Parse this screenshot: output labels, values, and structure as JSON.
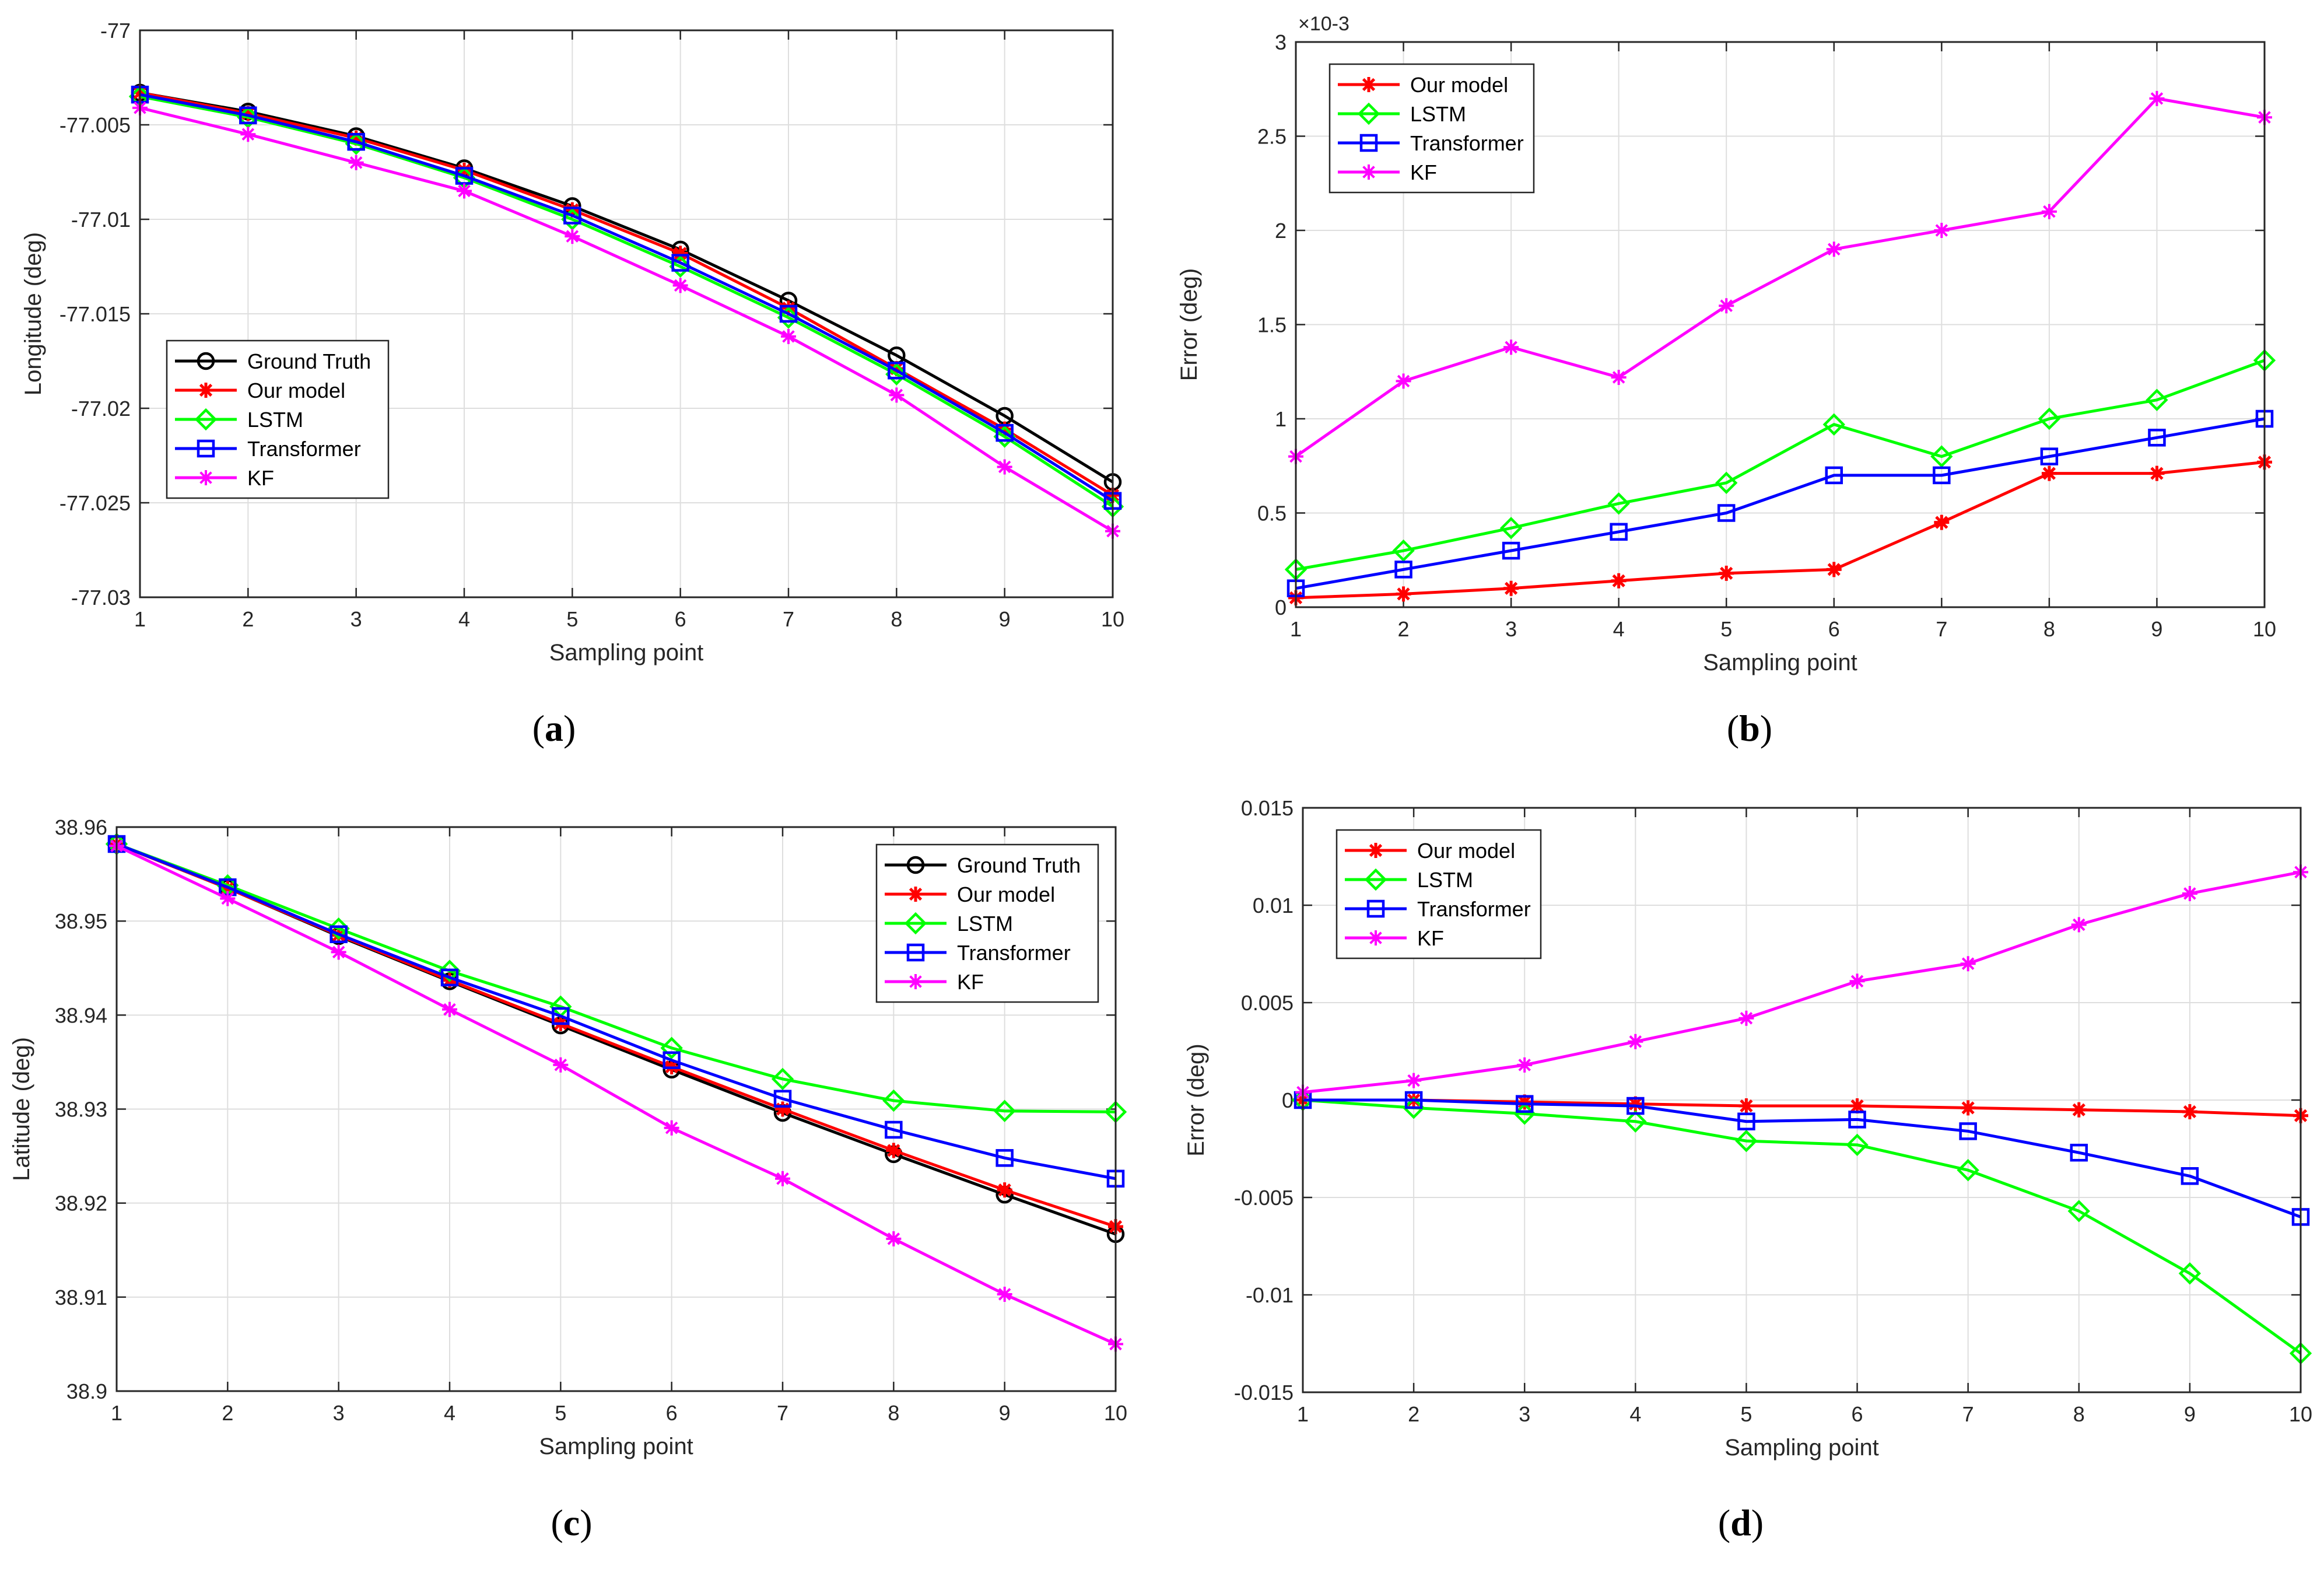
{
  "colors": {
    "Ground Truth": "#000000",
    "Our model": "#ff0000",
    "LSTM": "#00ff00",
    "Transformer": "#0000ff",
    "KF": "#ff00ff",
    "grid": "#dedede",
    "axis": "#262626"
  },
  "chart_data": [
    {
      "type": "line",
      "caption": "(a)",
      "xlabel": "Sampling point",
      "ylabel": "Longitude (deg)",
      "x": [
        1,
        2,
        3,
        4,
        5,
        6,
        7,
        8,
        9,
        10
      ],
      "xlim": [
        1,
        10
      ],
      "ylim": [
        -77.03,
        -77
      ],
      "xticks": [
        "1",
        "2",
        "3",
        "4",
        "5",
        "6",
        "7",
        "8",
        "9",
        "10"
      ],
      "yticks": [
        "-77.03",
        "-77.025",
        "-77.02",
        "-77.015",
        "-77.01",
        "-77.005",
        "-77"
      ],
      "exponent": "",
      "legend_position": "bottom-left",
      "grid": true,
      "series": [
        {
          "name": "Ground Truth",
          "marker": "circle",
          "values": [
            -77.0033,
            -77.0043,
            -77.0056,
            -77.0073,
            -77.0093,
            -77.0116,
            -77.0143,
            -77.0172,
            -77.0204,
            -77.0239
          ]
        },
        {
          "name": "Our model",
          "marker": "star",
          "values": [
            -77.0033,
            -77.0044,
            -77.0057,
            -77.0074,
            -77.0095,
            -77.0118,
            -77.0147,
            -77.0179,
            -77.0211,
            -77.0246
          ]
        },
        {
          "name": "LSTM",
          "marker": "diamond",
          "values": [
            -77.0035,
            -77.0046,
            -77.006,
            -77.0078,
            -77.01,
            -77.0125,
            -77.0152,
            -77.0182,
            -77.0215,
            -77.0252
          ]
        },
        {
          "name": "Transformer",
          "marker": "square",
          "values": [
            -77.0034,
            -77.0045,
            -77.0059,
            -77.0077,
            -77.0098,
            -77.0123,
            -77.015,
            -77.018,
            -77.0213,
            -77.0249
          ]
        },
        {
          "name": "KF",
          "marker": "asterisk",
          "values": [
            -77.0041,
            -77.0055,
            -77.007,
            -77.0085,
            -77.0109,
            -77.0135,
            -77.0162,
            -77.0193,
            -77.0231,
            -77.0265
          ]
        }
      ]
    },
    {
      "type": "line",
      "caption": "(b)",
      "xlabel": "Sampling point",
      "ylabel": "Error (deg)",
      "x": [
        1,
        2,
        3,
        4,
        5,
        6,
        7,
        8,
        9,
        10
      ],
      "xlim": [
        1,
        10
      ],
      "ylim": [
        0,
        3
      ],
      "xticks": [
        "1",
        "2",
        "3",
        "4",
        "5",
        "6",
        "7",
        "8",
        "9",
        "10"
      ],
      "yticks": [
        "0",
        "0.5",
        "1",
        "1.5",
        "2",
        "2.5",
        "3"
      ],
      "exponent": "×10-3",
      "legend_position": "top-left",
      "grid": true,
      "series": [
        {
          "name": "Our model",
          "marker": "star",
          "values": [
            0.05,
            0.07,
            0.1,
            0.14,
            0.18,
            0.2,
            0.45,
            0.71,
            0.71,
            0.77
          ]
        },
        {
          "name": "LSTM",
          "marker": "diamond",
          "values": [
            0.2,
            0.3,
            0.42,
            0.55,
            0.66,
            0.97,
            0.8,
            1.0,
            1.1,
            1.31
          ]
        },
        {
          "name": "Transformer",
          "marker": "square",
          "values": [
            0.1,
            0.2,
            0.3,
            0.4,
            0.5,
            0.7,
            0.7,
            0.8,
            0.9,
            1.0
          ]
        },
        {
          "name": "KF",
          "marker": "asterisk",
          "values": [
            0.8,
            1.2,
            1.38,
            1.22,
            1.6,
            1.9,
            2.0,
            2.1,
            2.7,
            2.6
          ]
        }
      ]
    },
    {
      "type": "line",
      "caption": "(c)",
      "xlabel": "Sampling point",
      "ylabel": "Latitude (deg)",
      "x": [
        1,
        2,
        3,
        4,
        5,
        6,
        7,
        8,
        9,
        10
      ],
      "xlim": [
        1,
        10
      ],
      "ylim": [
        38.9,
        38.96
      ],
      "xticks": [
        "1",
        "2",
        "3",
        "4",
        "5",
        "6",
        "7",
        "8",
        "9",
        "10"
      ],
      "yticks": [
        "38.9",
        "38.91",
        "38.92",
        "38.93",
        "38.94",
        "38.95",
        "38.96"
      ],
      "exponent": "",
      "legend_position": "top-right",
      "grid": true,
      "series": [
        {
          "name": "Ground Truth",
          "marker": "circle",
          "values": [
            38.9582,
            38.9535,
            38.9484,
            38.9436,
            38.9389,
            38.9342,
            38.9296,
            38.9252,
            38.9209,
            38.9167
          ]
        },
        {
          "name": "Our model",
          "marker": "star",
          "values": [
            38.9582,
            38.9535,
            38.9485,
            38.9437,
            38.9391,
            38.9345,
            38.93,
            38.9256,
            38.9214,
            38.9175
          ]
        },
        {
          "name": "LSTM",
          "marker": "diamond",
          "values": [
            38.9582,
            38.9538,
            38.9492,
            38.9447,
            38.9409,
            38.9365,
            38.9332,
            38.9309,
            38.9298,
            38.9297
          ]
        },
        {
          "name": "Transformer",
          "marker": "square",
          "values": [
            38.9582,
            38.9536,
            38.9486,
            38.944,
            38.9399,
            38.9352,
            38.9311,
            38.9278,
            38.9248,
            38.9226
          ]
        },
        {
          "name": "KF",
          "marker": "asterisk",
          "values": [
            38.958,
            38.9524,
            38.9467,
            38.9406,
            38.9347,
            38.928,
            38.9226,
            38.9162,
            38.9103,
            38.905
          ]
        }
      ]
    },
    {
      "type": "line",
      "caption": "(d)",
      "xlabel": "Sampling point",
      "ylabel": "Error (deg)",
      "x": [
        1,
        2,
        3,
        4,
        5,
        6,
        7,
        8,
        9,
        10
      ],
      "xlim": [
        1,
        10
      ],
      "ylim": [
        -0.015,
        0.015
      ],
      "xticks": [
        "1",
        "2",
        "3",
        "4",
        "5",
        "6",
        "7",
        "8",
        "9",
        "10"
      ],
      "yticks": [
        "-0.015",
        "-0.01",
        "-0.005",
        "0",
        "0.005",
        "0.01",
        "0.015"
      ],
      "exponent": "",
      "legend_position": "top-left",
      "grid": true,
      "series": [
        {
          "name": "Our model",
          "marker": "star",
          "values": [
            0.0,
            0.0,
            -0.0001,
            -0.0002,
            -0.0003,
            -0.0003,
            -0.0004,
            -0.0005,
            -0.0006,
            -0.0008
          ]
        },
        {
          "name": "LSTM",
          "marker": "diamond",
          "values": [
            0.0,
            -0.0004,
            -0.0007,
            -0.0011,
            -0.0021,
            -0.0023,
            -0.0036,
            -0.0057,
            -0.0089,
            -0.013
          ]
        },
        {
          "name": "Transformer",
          "marker": "square",
          "values": [
            0.0,
            0.0,
            -0.0002,
            -0.0003,
            -0.0011,
            -0.001,
            -0.0016,
            -0.0027,
            -0.0039,
            -0.006
          ]
        },
        {
          "name": "KF",
          "marker": "asterisk",
          "values": [
            0.0004,
            0.001,
            0.0018,
            0.003,
            0.0042,
            0.0061,
            0.007,
            0.009,
            0.0106,
            0.0117
          ]
        }
      ]
    }
  ]
}
